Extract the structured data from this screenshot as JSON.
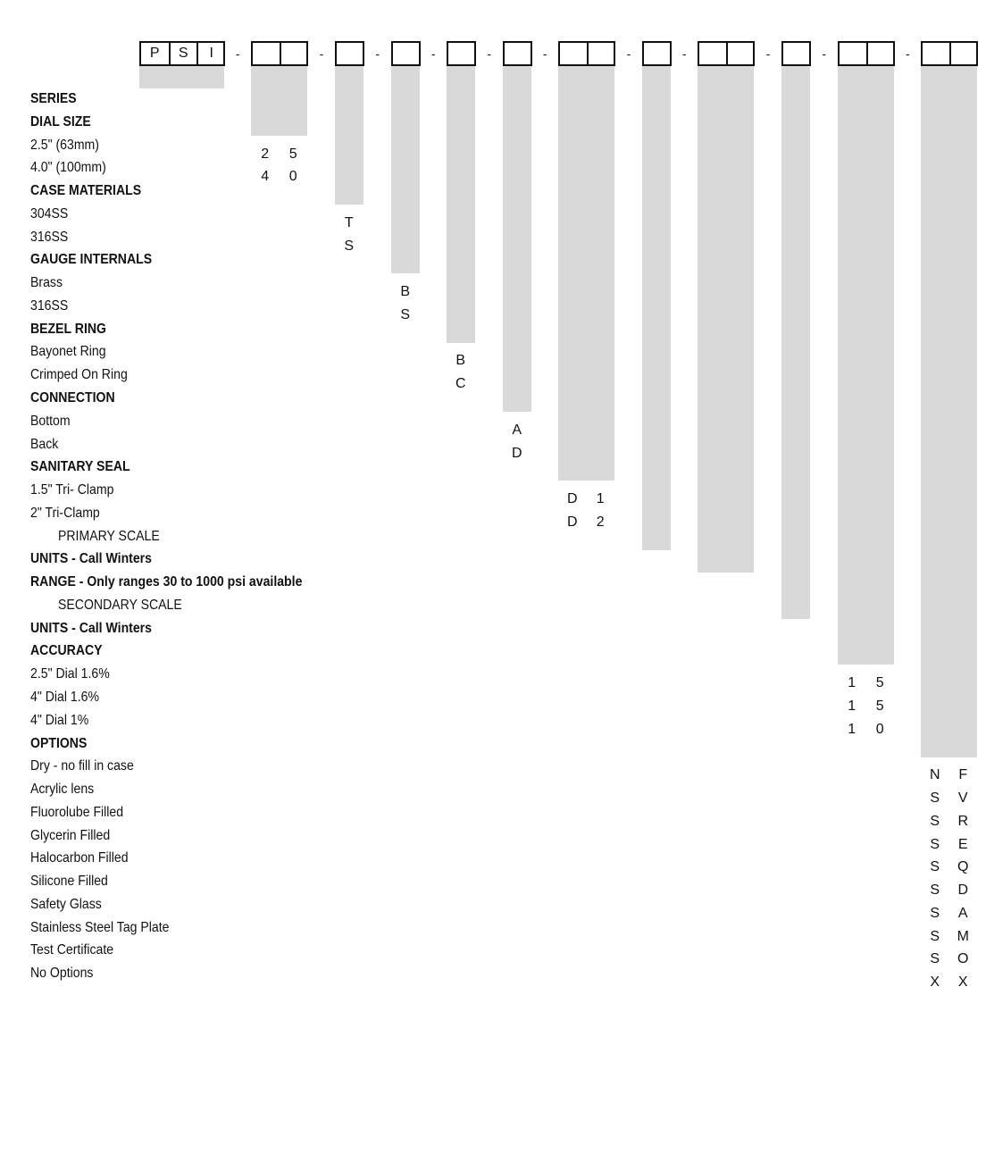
{
  "model_prefix": [
    "P",
    "S",
    "I"
  ],
  "separator": "-",
  "rows": [
    {
      "label": "SERIES",
      "heading": true
    },
    {
      "label": "DIAL SIZE",
      "heading": true
    },
    {
      "label": "2.5\" (63mm)",
      "col": 0,
      "code": [
        "2",
        "5"
      ]
    },
    {
      "label": "4.0\" (100mm)",
      "col": 0,
      "code": [
        "4",
        "0"
      ]
    },
    {
      "label": "CASE MATERIALS",
      "heading": true
    },
    {
      "label": "304SS",
      "col": 1,
      "code": [
        "T"
      ]
    },
    {
      "label": "316SS",
      "col": 1,
      "code": [
        "S"
      ]
    },
    {
      "label": "GAUGE INTERNALS",
      "heading": true
    },
    {
      "label": "Brass",
      "col": 2,
      "code": [
        "B"
      ]
    },
    {
      "label": "316SS",
      "col": 2,
      "code": [
        "S"
      ]
    },
    {
      "label": "BEZEL RING",
      "heading": true
    },
    {
      "label": "Bayonet Ring",
      "col": 3,
      "code": [
        "B"
      ]
    },
    {
      "label": "Crimped On Ring",
      "col": 3,
      "code": [
        "C"
      ]
    },
    {
      "label": "CONNECTION",
      "heading": true
    },
    {
      "label": "Bottom",
      "col": 4,
      "code": [
        "A"
      ]
    },
    {
      "label": "Back",
      "col": 4,
      "code": [
        "D"
      ]
    },
    {
      "label": "SANITARY SEAL",
      "heading": true
    },
    {
      "label": "1.5\" Tri- Clamp",
      "col": 5,
      "code": [
        "D",
        "1"
      ]
    },
    {
      "label": "2\" Tri-Clamp",
      "col": 5,
      "code": [
        "D",
        "2"
      ]
    },
    {
      "label": "PRIMARY SCALE",
      "indent": true
    },
    {
      "label": "UNITS - Call Winters",
      "heading": true
    },
    {
      "label": "RANGE - Only ranges 30 to 1000 psi available",
      "heading": true
    },
    {
      "label": "SECONDARY SCALE",
      "indent": true
    },
    {
      "label": "UNITS - Call Winters",
      "heading": true
    },
    {
      "label": "ACCURACY",
      "heading": true
    },
    {
      "label": "2.5\" Dial 1.6%",
      "col": 9,
      "code": [
        "1",
        "5"
      ]
    },
    {
      "label": "4\" Dial 1.6%",
      "col": 9,
      "code": [
        "1",
        "5"
      ]
    },
    {
      "label": "4\" Dial 1%",
      "col": 9,
      "code": [
        "1",
        "0"
      ]
    },
    {
      "label": "OPTIONS",
      "heading": true
    },
    {
      "label": "Dry - no fill in case",
      "col": 10,
      "code": [
        "N",
        "F"
      ]
    },
    {
      "label": "Acrylic lens",
      "col": 10,
      "code": [
        "S",
        "V"
      ]
    },
    {
      "label": "Fluorolube Filled",
      "col": 10,
      "code": [
        "S",
        "R"
      ]
    },
    {
      "label": "Glycerin Filled",
      "col": 10,
      "code": [
        "S",
        "E"
      ]
    },
    {
      "label": "Halocarbon Filled",
      "col": 10,
      "code": [
        "S",
        "Q"
      ]
    },
    {
      "label": "Silicone Filled",
      "col": 10,
      "code": [
        "S",
        "D"
      ]
    },
    {
      "label": "Safety Glass",
      "col": 10,
      "code": [
        "S",
        "A"
      ]
    },
    {
      "label": "Stainless Steel Tag Plate",
      "col": 10,
      "code": [
        "S",
        "M"
      ]
    },
    {
      "label": "Test Certificate",
      "col": 10,
      "code": [
        "S",
        "O"
      ]
    },
    {
      "label": "No Options",
      "col": 10,
      "code": [
        "X",
        "X"
      ]
    }
  ]
}
